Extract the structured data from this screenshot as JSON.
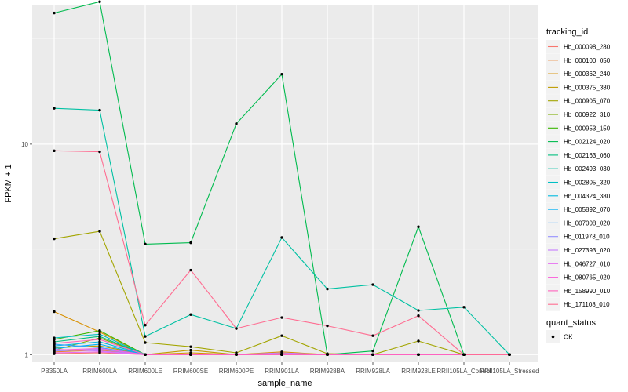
{
  "chart_data": {
    "type": "line",
    "xlabel": "sample_name",
    "ylabel": "FPKM + 1",
    "y_scale": "log10",
    "ylim": [
      0.92,
      46
    ],
    "y_ticks": [
      1,
      10
    ],
    "y_tick_labels": [
      "1",
      "10"
    ],
    "grid": true,
    "legend_placement": "right",
    "categories": [
      "PB350LA",
      "RRIM600LA",
      "RRIM600LE",
      "RRIM600SE",
      "RRIM600PE",
      "RRIM901LA",
      "RRIM928BA",
      "RRIM928LA",
      "RRIM928LE",
      "RRII105LA_Control",
      "RRII105LA_Stressed"
    ],
    "legend": {
      "color_title": "tracking_id",
      "shape_title": "quant_status",
      "shape_entries": [
        "OK"
      ]
    },
    "series": [
      {
        "name": "Hb_000098_280",
        "color": "#F8766D",
        "values": [
          1.01,
          1.02,
          1.0,
          1.0,
          1.0,
          1.0,
          1.0,
          1.0,
          1.0,
          1.0,
          1.0
        ]
      },
      {
        "name": "Hb_000100_050",
        "color": "#EA8331",
        "values": [
          1.03,
          1.05,
          1.0,
          1.0,
          1.0,
          1.0,
          1.0,
          1.0,
          1.0,
          1.0,
          1.0
        ]
      },
      {
        "name": "Hb_000362_240",
        "color": "#D89000",
        "values": [
          1.6,
          1.28,
          1.0,
          1.02,
          1.0,
          1.03,
          1.0,
          1.0,
          1.0,
          1.0,
          1.0
        ]
      },
      {
        "name": "Hb_000375_380",
        "color": "#C09B00",
        "values": [
          1.08,
          1.1,
          1.0,
          1.05,
          1.0,
          1.01,
          1.0,
          1.0,
          1.0,
          1.0,
          1.0
        ]
      },
      {
        "name": "Hb_000905_070",
        "color": "#A3A500",
        "values": [
          3.55,
          3.85,
          1.14,
          1.09,
          1.02,
          1.23,
          1.01,
          1.0,
          1.16,
          1.0,
          1.0
        ]
      },
      {
        "name": "Hb_000922_310",
        "color": "#7CAE00",
        "values": [
          1.05,
          1.2,
          1.0,
          1.0,
          1.0,
          1.0,
          1.0,
          1.0,
          1.0,
          1.0,
          1.0
        ]
      },
      {
        "name": "Hb_000953_150",
        "color": "#39B600",
        "values": [
          1.18,
          1.3,
          1.0,
          1.0,
          1.0,
          1.0,
          1.0,
          1.0,
          1.0,
          1.0,
          1.0
        ]
      },
      {
        "name": "Hb_002124_020",
        "color": "#00BB4E",
        "values": [
          42.0,
          47.5,
          3.35,
          3.4,
          12.5,
          21.5,
          1.0,
          1.04,
          4.05,
          1.0,
          1.0
        ]
      },
      {
        "name": "Hb_002163_060",
        "color": "#00BF7D",
        "values": [
          1.15,
          1.22,
          1.0,
          1.0,
          1.0,
          1.0,
          1.0,
          1.0,
          1.0,
          1.0,
          1.0
        ]
      },
      {
        "name": "Hb_002493_030",
        "color": "#00C1A3",
        "values": [
          14.8,
          14.5,
          1.22,
          1.55,
          1.33,
          3.6,
          2.05,
          2.15,
          1.62,
          1.68,
          1.0
        ]
      },
      {
        "name": "Hb_002805_320",
        "color": "#00BFC4",
        "values": [
          1.2,
          1.25,
          1.0,
          1.0,
          1.0,
          1.0,
          1.0,
          1.0,
          1.0,
          1.0,
          1.0
        ]
      },
      {
        "name": "Hb_004324_380",
        "color": "#00BAE0",
        "values": [
          1.1,
          1.15,
          1.0,
          1.0,
          1.0,
          1.0,
          1.0,
          1.0,
          1.0,
          1.0,
          1.0
        ]
      },
      {
        "name": "Hb_005892_070",
        "color": "#00B0F6",
        "values": [
          1.07,
          1.12,
          1.0,
          1.0,
          1.0,
          1.0,
          1.0,
          1.0,
          1.0,
          1.0,
          1.0
        ]
      },
      {
        "name": "Hb_007008_020",
        "color": "#35A2FF",
        "values": [
          1.12,
          1.08,
          1.0,
          1.0,
          1.0,
          1.0,
          1.0,
          1.0,
          1.0,
          1.0,
          1.0
        ]
      },
      {
        "name": "Hb_011978_010",
        "color": "#9590FF",
        "values": [
          1.04,
          1.06,
          1.0,
          1.0,
          1.0,
          1.0,
          1.0,
          1.0,
          1.0,
          1.0,
          1.0
        ]
      },
      {
        "name": "Hb_027393_020",
        "color": "#C77CFF",
        "values": [
          1.06,
          1.04,
          1.0,
          1.0,
          1.0,
          1.02,
          1.0,
          1.0,
          1.0,
          1.0,
          1.0
        ]
      },
      {
        "name": "Hb_046727_010",
        "color": "#E76BF3",
        "values": [
          1.02,
          1.03,
          1.0,
          1.0,
          1.0,
          1.0,
          1.0,
          1.0,
          1.0,
          1.0,
          1.0
        ]
      },
      {
        "name": "Hb_080765_020",
        "color": "#FA62DB",
        "values": [
          1.05,
          1.07,
          1.0,
          1.0,
          1.0,
          1.0,
          1.0,
          1.0,
          1.0,
          1.0,
          1.0
        ]
      },
      {
        "name": "Hb_158990_010",
        "color": "#FF62BC",
        "values": [
          1.13,
          1.18,
          1.0,
          1.0,
          1.0,
          1.0,
          1.0,
          1.0,
          1.0,
          1.0,
          1.0
        ]
      },
      {
        "name": "Hb_171108_010",
        "color": "#FF6C91",
        "values": [
          9.3,
          9.2,
          1.38,
          2.52,
          1.33,
          1.5,
          1.37,
          1.23,
          1.53,
          1.0,
          1.0
        ]
      }
    ]
  }
}
